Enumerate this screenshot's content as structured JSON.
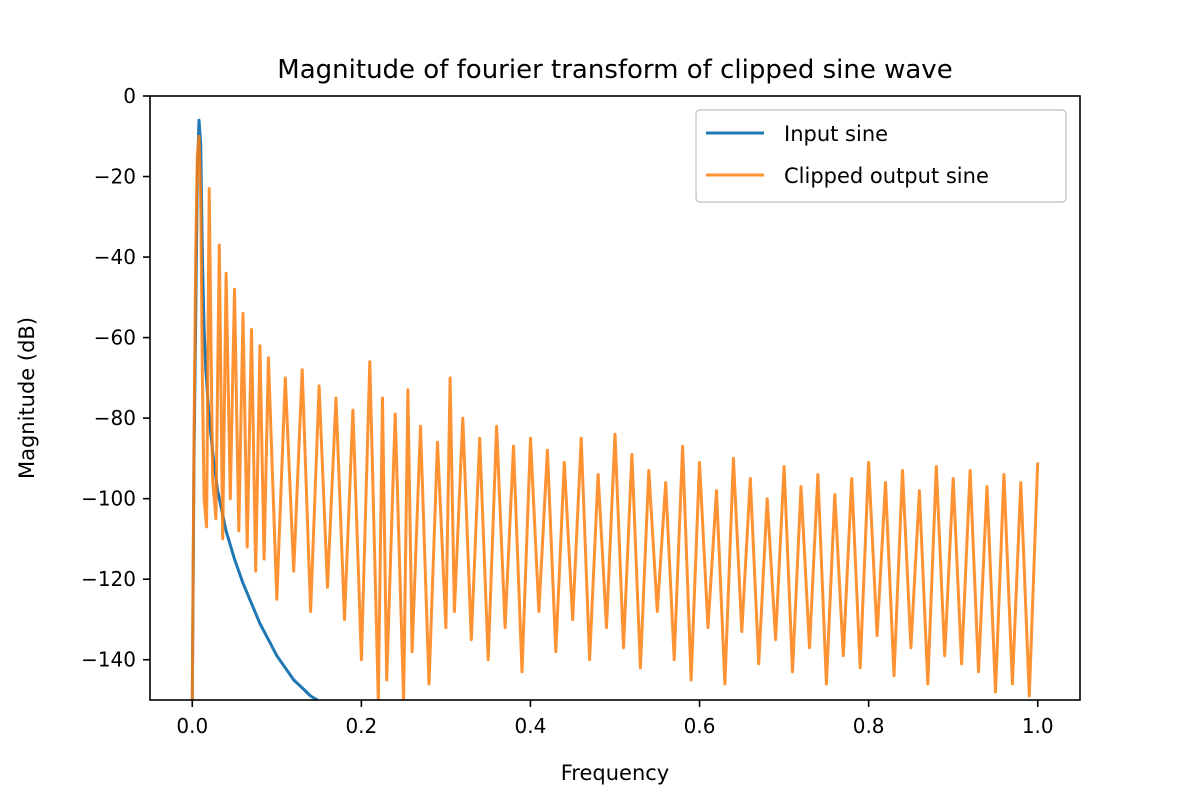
{
  "chart_data": {
    "type": "line",
    "title": "Magnitude of fourier transform of clipped sine wave",
    "xlabel": "Frequency",
    "ylabel": "Magnitude (dB)",
    "xlim": [
      -0.05,
      1.05
    ],
    "ylim": [
      -150,
      0
    ],
    "xticks": [
      0.0,
      0.2,
      0.4,
      0.6,
      0.8,
      1.0
    ],
    "xtick_labels": [
      "0.0",
      "0.2",
      "0.4",
      "0.6",
      "0.8",
      "1.0"
    ],
    "yticks": [
      0,
      -20,
      -40,
      -60,
      -80,
      -100,
      -120,
      -140
    ],
    "ytick_labels": [
      "0",
      "−20",
      "−40",
      "−60",
      "−80",
      "−100",
      "−120",
      "−140"
    ],
    "grid": false,
    "legend_position": "top-right",
    "series": [
      {
        "name": "Input sine",
        "color": "#1f77b4",
        "x": [
          0.0,
          0.002,
          0.004,
          0.006,
          0.008,
          0.01,
          0.012,
          0.014,
          0.016,
          0.02,
          0.025,
          0.03,
          0.04,
          0.05,
          0.06,
          0.07,
          0.08,
          0.09,
          0.1,
          0.11,
          0.12,
          0.13,
          0.14,
          0.148
        ],
        "y": [
          -150,
          -90,
          -55,
          -20,
          -6,
          -12,
          -40,
          -58,
          -68,
          -80,
          -90,
          -98,
          -108,
          -115,
          -121,
          -126,
          -131,
          -135,
          -139,
          -142,
          -145,
          -147,
          -149,
          -150
        ]
      },
      {
        "name": "Clipped output sine",
        "color": "#ff7f0e",
        "x": [
          0.0,
          0.002,
          0.004,
          0.006,
          0.008,
          0.01,
          0.012,
          0.014,
          0.017,
          0.02,
          0.024,
          0.028,
          0.032,
          0.036,
          0.04,
          0.045,
          0.05,
          0.055,
          0.06,
          0.065,
          0.07,
          0.075,
          0.08,
          0.085,
          0.09,
          0.1,
          0.11,
          0.12,
          0.13,
          0.14,
          0.15,
          0.16,
          0.17,
          0.18,
          0.19,
          0.2,
          0.21,
          0.22,
          0.225,
          0.23,
          0.24,
          0.25,
          0.255,
          0.26,
          0.27,
          0.28,
          0.29,
          0.3,
          0.305,
          0.31,
          0.32,
          0.33,
          0.34,
          0.35,
          0.36,
          0.37,
          0.38,
          0.39,
          0.4,
          0.41,
          0.42,
          0.43,
          0.44,
          0.45,
          0.46,
          0.47,
          0.48,
          0.49,
          0.5,
          0.51,
          0.52,
          0.53,
          0.54,
          0.55,
          0.56,
          0.57,
          0.58,
          0.59,
          0.6,
          0.61,
          0.62,
          0.63,
          0.64,
          0.65,
          0.66,
          0.67,
          0.68,
          0.69,
          0.7,
          0.71,
          0.72,
          0.73,
          0.74,
          0.75,
          0.76,
          0.77,
          0.78,
          0.79,
          0.8,
          0.81,
          0.82,
          0.83,
          0.84,
          0.85,
          0.86,
          0.87,
          0.88,
          0.89,
          0.9,
          0.91,
          0.92,
          0.93,
          0.94,
          0.95,
          0.96,
          0.97,
          0.98,
          0.99,
          1.0
        ],
        "y": [
          -150,
          -85,
          -40,
          -15,
          -10,
          -25,
          -70,
          -100,
          -107,
          -23,
          -95,
          -105,
          -37,
          -110,
          -44,
          -100,
          -48,
          -108,
          -54,
          -112,
          -58,
          -118,
          -62,
          -115,
          -65,
          -125,
          -70,
          -118,
          -68,
          -128,
          -72,
          -122,
          -75,
          -130,
          -78,
          -140,
          -66,
          -150,
          -75,
          -145,
          -79,
          -150,
          -73,
          -138,
          -82,
          -146,
          -86,
          -132,
          -70,
          -128,
          -80,
          -135,
          -85,
          -140,
          -82,
          -132,
          -87,
          -143,
          -85,
          -128,
          -88,
          -138,
          -91,
          -130,
          -85,
          -140,
          -94,
          -132,
          -84,
          -137,
          -89,
          -142,
          -93,
          -128,
          -96,
          -140,
          -87,
          -145,
          -91,
          -132,
          -98,
          -146,
          -90,
          -133,
          -95,
          -141,
          -100,
          -135,
          -92,
          -143,
          -97,
          -137,
          -94,
          -146,
          -99,
          -139,
          -95,
          -142,
          -91,
          -134,
          -96,
          -144,
          -93,
          -137,
          -98,
          -146,
          -92,
          -139,
          -95,
          -141,
          -93,
          -143,
          -97,
          -148,
          -94,
          -146,
          -96,
          -149,
          -91
        ]
      }
    ]
  }
}
